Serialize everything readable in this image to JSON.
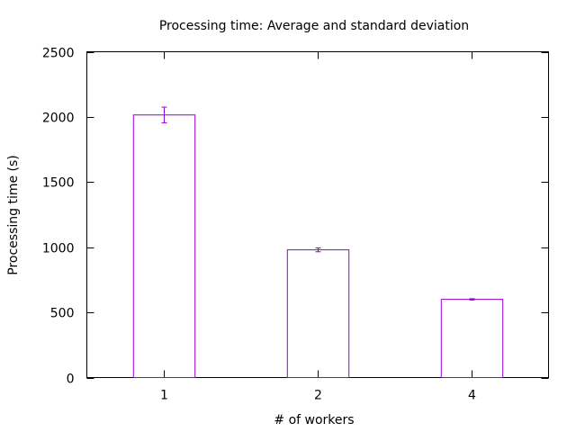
{
  "chart_data": {
    "type": "bar",
    "title": "Processing time: Average and standard deviation",
    "xlabel": "# of workers",
    "ylabel": "Processing time (s)",
    "categories": [
      "1",
      "2",
      "4"
    ],
    "values": [
      2015,
      980,
      600
    ],
    "errors": [
      60,
      15,
      5
    ],
    "ylim": [
      0,
      2500
    ],
    "yticks": [
      0,
      500,
      1000,
      1500,
      2000,
      2500
    ],
    "grid": false,
    "legend": "none",
    "bar_color": "#9400d3"
  }
}
